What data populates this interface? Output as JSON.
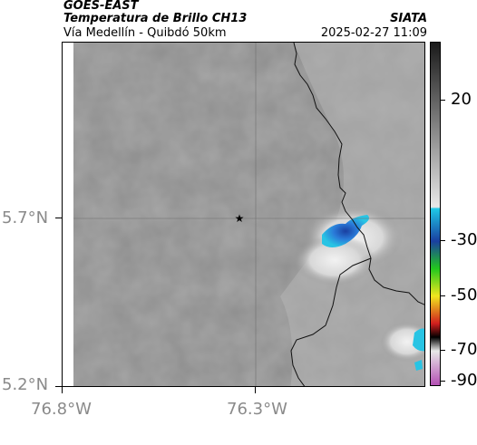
{
  "header": {
    "satellite": "GOES-EAST",
    "product": "Temperatura de Brillo CH13",
    "region": "Vía Medellín - Quibdó 50km",
    "org": "SIATA",
    "timestamp": "2025-02-27 11:09"
  },
  "axes": {
    "lat_labels": [
      "5.7°N",
      "5.2°N"
    ],
    "lon_labels": [
      "76.8°W",
      "76.3°W"
    ]
  },
  "colorbar": {
    "labels": [
      "20",
      "-30",
      "-50",
      "-70",
      "-90"
    ],
    "colors": {
      "gray_dark": "#1a1a1a",
      "gray_light": "#e8e8e8",
      "cyan": "#1ec8e6",
      "blue": "#1a3fa0",
      "green": "#22c81e",
      "yellow": "#f0e61e",
      "red": "#d21e1e",
      "black": "#000000",
      "magenta": "#b450b4"
    }
  },
  "map": {
    "marker": "star-icon",
    "cloud_cold_color": "#2a6ad0",
    "cloud_cyan_color": "#28c4e4"
  }
}
